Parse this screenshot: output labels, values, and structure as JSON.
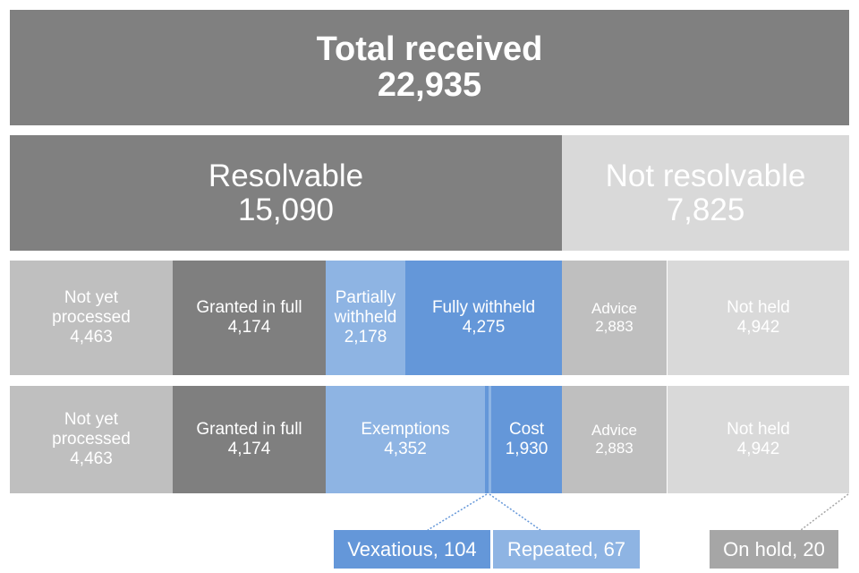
{
  "total": {
    "label": "Total received",
    "value": "22,935"
  },
  "resolvable": {
    "label": "Resolvable",
    "value": "15,090"
  },
  "not_resolvable": {
    "label": "Not resolvable",
    "value": "7,825"
  },
  "row1": [
    {
      "label": "Not yet\nprocessed",
      "value": "4,463"
    },
    {
      "label": "Granted in full",
      "value": "4,174"
    },
    {
      "label": "Partially\nwithheld",
      "value": "2,178"
    },
    {
      "label": "Fully withheld",
      "value": "4,275"
    },
    {
      "label": "Advice",
      "value": "2,883"
    },
    {
      "label": "Not held",
      "value": "4,942"
    }
  ],
  "row2": [
    {
      "label": "Not yet\nprocessed",
      "value": "4,463"
    },
    {
      "label": "Granted in full",
      "value": "4,174"
    },
    {
      "label": "Exemptions",
      "value": "4,352"
    },
    {
      "label": "Cost",
      "value": "1,930"
    },
    {
      "label": "Advice",
      "value": "2,883"
    },
    {
      "label": "Not held",
      "value": "4,942"
    }
  ],
  "callouts": {
    "vexatious": "Vexatious, 104",
    "repeated": "Repeated, 67",
    "on_hold": "On hold, 20"
  },
  "colors": {
    "dark_grey": "#7f7f7f",
    "mid_grey": "#bfbfbf",
    "light_grey": "#d9d9d9",
    "light_blue": "#8eb4e3",
    "blue": "#6497d9"
  }
}
